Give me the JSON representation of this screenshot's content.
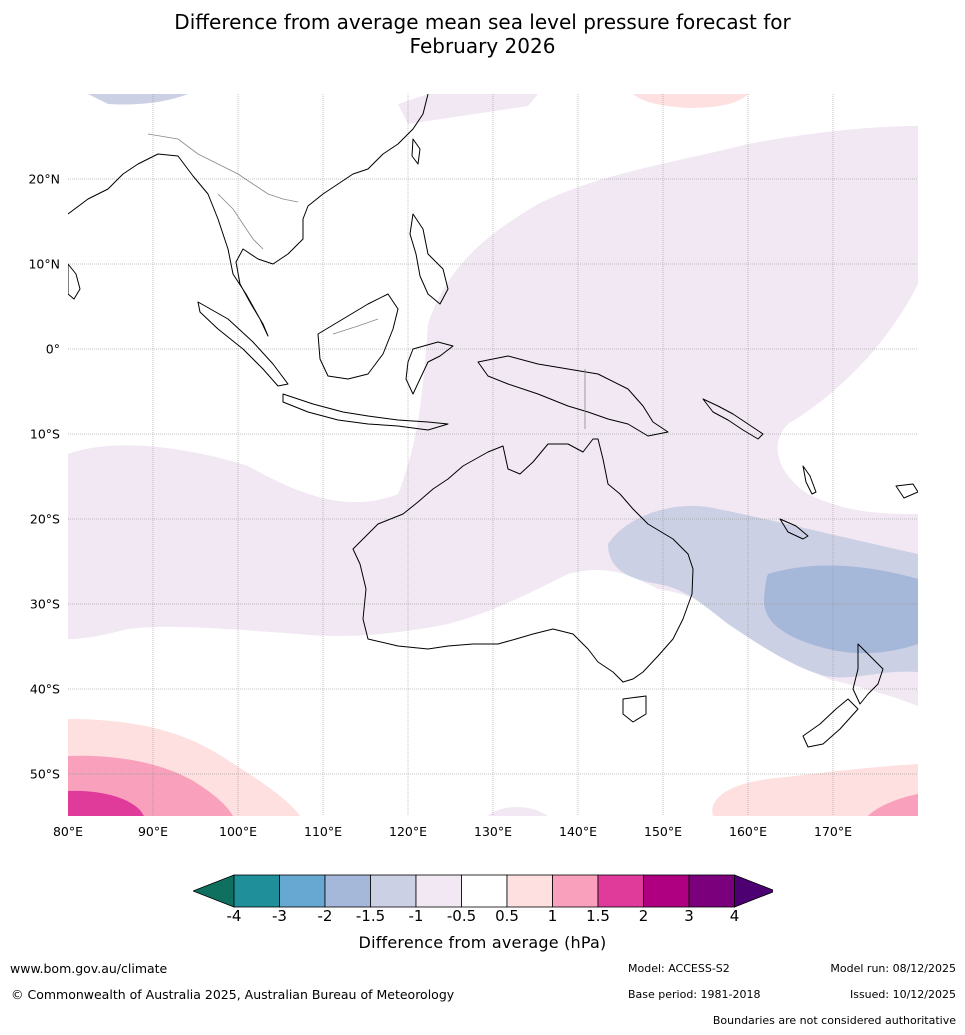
{
  "title_line1": "Difference from average mean sea level pressure forecast for",
  "title_line2": "February 2026",
  "map": {
    "lon_range": [
      80,
      180
    ],
    "lat_range": [
      -55,
      30
    ],
    "lat_labels": [
      "20°N",
      "10°N",
      "0°",
      "10°S",
      "20°S",
      "30°S",
      "40°S",
      "50°S"
    ],
    "lon_labels": [
      "80°E",
      "90°E",
      "100°E",
      "110°E",
      "120°E",
      "130°E",
      "140°E",
      "150°E",
      "160°E",
      "170°E"
    ]
  },
  "colorbar": {
    "colors": [
      "#0f7060",
      "#1f8f9a",
      "#66a8d2",
      "#a5b8da",
      "#ccd0e4",
      "#f1e8f3",
      "#ffffff",
      "#fde0df",
      "#f9a0bc",
      "#e03a9a",
      "#ae0080",
      "#7a007c",
      "#4c0072"
    ],
    "ticks": [
      "-4",
      "-3",
      "-2",
      "-1.5",
      "-1",
      "-0.5",
      "0.5",
      "1",
      "1.5",
      "2",
      "3",
      "4"
    ],
    "label": "Difference from average (hPa)"
  },
  "footer": {
    "url": "www.bom.gov.au/climate",
    "copyright": "© Commonwealth of Australia 2025, Australian Bureau of Meteorology",
    "model": "Model: ACCESS-S2",
    "base_period": "Base period: 1981-2018",
    "model_run": "Model run: 08/12/2025",
    "issued": "Issued: 10/12/2025",
    "disclaimer": "Boundaries are not considered authoritative"
  }
}
